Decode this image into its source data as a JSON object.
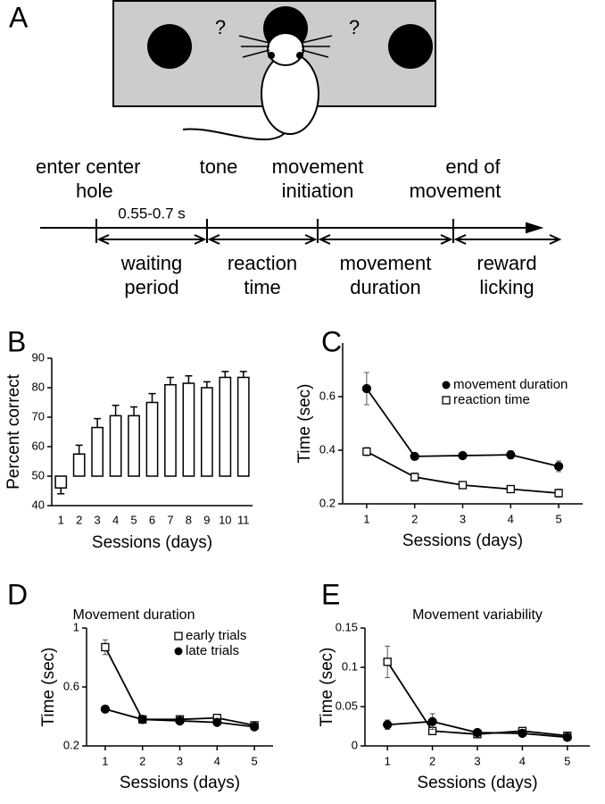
{
  "panel_a": {
    "label": "A",
    "questions": [
      "?",
      "?"
    ],
    "events": [
      [
        "enter center",
        "hole"
      ],
      [
        "tone"
      ],
      [
        "movement",
        "initiation"
      ],
      [
        "end of",
        "movement"
      ]
    ],
    "interval": "0.55-0.7 s",
    "phases": [
      [
        "waiting",
        "period"
      ],
      [
        "reaction",
        "time"
      ],
      [
        "movement",
        "duration"
      ],
      [
        "reward",
        "licking"
      ]
    ]
  },
  "chart_data": [
    {
      "panel_label": "B",
      "type": "bar",
      "ylabel": "Percent correct",
      "xlabel": "Sessions (days)",
      "categories": [
        "1",
        "2",
        "3",
        "4",
        "5",
        "6",
        "7",
        "8",
        "9",
        "10",
        "11"
      ],
      "values": [
        46,
        57.5,
        66.5,
        70.5,
        70.5,
        75,
        81,
        81.5,
        80,
        83.5,
        83.5
      ],
      "errors": [
        2,
        3,
        3,
        3.5,
        3,
        3,
        2.5,
        2.5,
        2,
        2,
        2
      ],
      "baseline": 50,
      "color": "#ffffff",
      "ylim": [
        40,
        90
      ],
      "yticks": [
        40,
        50,
        60,
        70,
        80,
        90
      ]
    },
    {
      "panel_label": "C",
      "type": "line",
      "ylabel": "Time (sec)",
      "xlabel": "Sessions (days)",
      "x": [
        1,
        2,
        3,
        4,
        5
      ],
      "xlim": [
        0.5,
        5.5
      ],
      "xticks": [
        1,
        2,
        3,
        4,
        5
      ],
      "ylim": [
        0.2,
        0.8
      ],
      "yticks": [
        0.2,
        0.4,
        0.6
      ],
      "series": [
        {
          "name": "movement duration",
          "color": "#000000",
          "marker": "circle",
          "values": [
            0.63,
            0.377,
            0.38,
            0.383,
            0.34
          ],
          "errors": [
            0.06,
            0.01,
            0.01,
            0.015,
            0.02
          ]
        },
        {
          "name": "reaction time",
          "color": "#000000",
          "marker": "square",
          "values": [
            0.395,
            0.3,
            0.27,
            0.255,
            0.24
          ],
          "errors": [
            0.015,
            0.015,
            0.01,
            0.012,
            0.015
          ]
        }
      ]
    },
    {
      "panel_label": "D",
      "type": "line",
      "title": "Movement duration",
      "ylabel": "Time (sec)",
      "xlabel": "Sessions (days)",
      "x": [
        1,
        2,
        3,
        4,
        5
      ],
      "xlim": [
        0.5,
        5.5
      ],
      "xticks": [
        1,
        2,
        3,
        4,
        5
      ],
      "ylim": [
        0.2,
        1
      ],
      "yticks": [
        0.2,
        0.6,
        1
      ],
      "series": [
        {
          "name": "early trials",
          "color": "#000000",
          "marker": "square",
          "values": [
            0.87,
            0.38,
            0.38,
            0.39,
            0.34
          ],
          "errors": [
            0.05,
            0.01,
            0.01,
            0.01,
            0.01
          ]
        },
        {
          "name": "late trials",
          "color": "#000000",
          "marker": "circle",
          "values": [
            0.45,
            0.38,
            0.37,
            0.36,
            0.33
          ],
          "errors": [
            0.01,
            0.01,
            0.01,
            0.01,
            0.01
          ]
        }
      ]
    },
    {
      "panel_label": "E",
      "type": "line",
      "title": "Movement variability",
      "ylabel": "Time (sec)",
      "xlabel": "Sessions (days)",
      "x": [
        1,
        2,
        3,
        4,
        5
      ],
      "xlim": [
        0.5,
        5.5
      ],
      "xticks": [
        1,
        2,
        3,
        4,
        5
      ],
      "ylim": [
        0,
        0.15
      ],
      "yticks": [
        0,
        0.05,
        0.1,
        0.15
      ],
      "series": [
        {
          "name": "early trials",
          "color": "#000000",
          "marker": "square",
          "values": [
            0.107,
            0.019,
            0.015,
            0.019,
            0.013
          ],
          "errors": [
            0.02,
            0.004,
            0.002,
            0.002,
            0.002
          ]
        },
        {
          "name": "late trials",
          "color": "#000000",
          "marker": "circle",
          "values": [
            0.027,
            0.031,
            0.017,
            0.016,
            0.011
          ],
          "errors": [
            0.006,
            0.01,
            0.003,
            0.003,
            0.002
          ]
        }
      ]
    }
  ]
}
